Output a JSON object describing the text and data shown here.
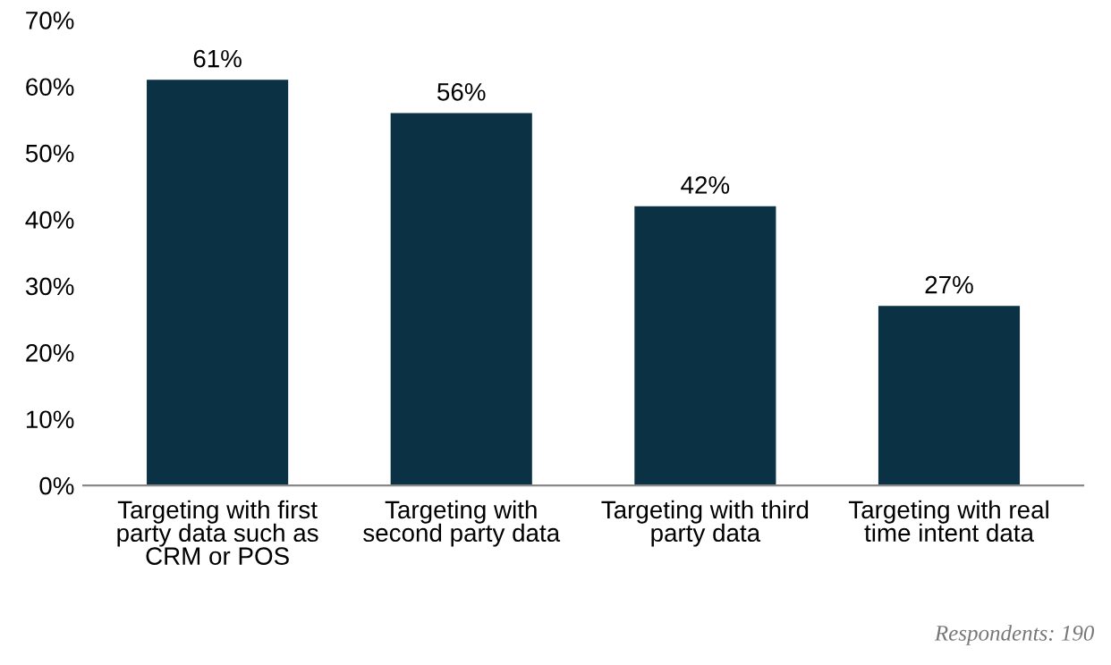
{
  "chart_data": {
    "type": "bar",
    "categories": [
      "Targeting with first\nparty data such as\nCRM or POS",
      "Targeting with\nsecond party data",
      "Targeting with third\nparty data",
      "Targeting with real\ntime intent data"
    ],
    "values": [
      61,
      56,
      42,
      27
    ],
    "value_labels": [
      "61%",
      "56%",
      "42%",
      "27%"
    ],
    "color": "#0b3244",
    "ylim": [
      0,
      70
    ],
    "yticks": [
      {
        "value": 0,
        "label": "0%"
      },
      {
        "value": 10,
        "label": "10%"
      },
      {
        "value": 20,
        "label": "20%"
      },
      {
        "value": 30,
        "label": "30%"
      },
      {
        "value": 40,
        "label": "40%"
      },
      {
        "value": 50,
        "label": "50%"
      },
      {
        "value": 60,
        "label": "60%"
      },
      {
        "value": 70,
        "label": "70%"
      }
    ],
    "grid": false,
    "legend": false,
    "annotations": [
      "Respondents: 190"
    ]
  }
}
